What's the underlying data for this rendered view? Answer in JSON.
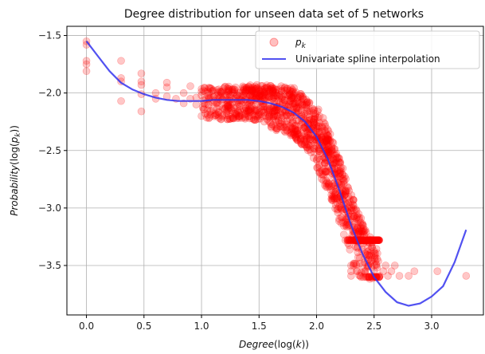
{
  "chart_data": {
    "type": "scatter",
    "title": "Degree distribution for unseen data set of 5 networks",
    "xlabel": {
      "main": "Degree",
      "paren": "(log(",
      "var": "k",
      "close": "))"
    },
    "ylabel": {
      "main": "Probability",
      "paren": "(log(",
      "var": "p",
      "sub": "k",
      "close": "))"
    },
    "xlim": [
      -0.17,
      3.45
    ],
    "ylim": [
      -3.93,
      -1.42
    ],
    "xticks": [
      0.0,
      0.5,
      1.0,
      1.5,
      2.0,
      2.5,
      3.0
    ],
    "xtick_labels": [
      "0.0",
      "0.5",
      "1.0",
      "1.5",
      "2.0",
      "2.5",
      "3.0"
    ],
    "yticks": [
      -1.5,
      -2.0,
      -2.5,
      -3.0,
      -3.5
    ],
    "ytick_labels": [
      "−1.5",
      "−2.0",
      "−2.5",
      "−3.0",
      "−3.5"
    ],
    "grid": true,
    "legend": {
      "placement": "top-right",
      "entries": [
        {
          "label": "p",
          "sub": "k",
          "marker": "circle",
          "color": "#ff0000"
        },
        {
          "label": "Univariate spline interpolation",
          "marker": "line",
          "color": "#3333ee"
        }
      ]
    },
    "series": [
      {
        "name": "p_k",
        "kind": "scatter",
        "color": "#ff0000",
        "alpha": 0.22,
        "points": [
          [
            0.0,
            -1.55
          ],
          [
            0.0,
            -1.58
          ],
          [
            0.0,
            -1.72
          ],
          [
            0.0,
            -1.75
          ],
          [
            0.0,
            -1.81
          ],
          [
            0.301,
            -1.72
          ],
          [
            0.301,
            -1.87
          ],
          [
            0.301,
            -1.9
          ],
          [
            0.301,
            -2.07
          ],
          [
            0.477,
            -1.83
          ],
          [
            0.477,
            -1.9
          ],
          [
            0.477,
            -1.93
          ],
          [
            0.477,
            -2.01
          ],
          [
            0.477,
            -2.16
          ],
          [
            0.602,
            -2.0
          ],
          [
            0.602,
            -2.05
          ],
          [
            0.699,
            -1.91
          ],
          [
            0.699,
            -1.95
          ],
          [
            0.699,
            -2.03
          ],
          [
            0.778,
            -2.05
          ],
          [
            0.845,
            -2.0
          ],
          [
            0.845,
            -2.09
          ],
          [
            0.903,
            -1.94
          ],
          [
            0.903,
            -2.05
          ],
          [
            0.954,
            -2.04
          ],
          [
            0.954,
            -2.1
          ],
          [
            1.0,
            -2.02
          ],
          [
            1.0,
            -2.2
          ],
          [
            2.3,
            -3.5
          ],
          [
            2.3,
            -3.55
          ],
          [
            2.3,
            -3.59
          ],
          [
            2.32,
            -3.5
          ],
          [
            2.35,
            -3.55
          ],
          [
            2.38,
            -3.59
          ],
          [
            2.4,
            -3.5
          ],
          [
            2.42,
            -3.55
          ],
          [
            2.45,
            -3.5
          ],
          [
            2.48,
            -3.59
          ],
          [
            2.5,
            -3.55
          ],
          [
            2.52,
            -3.5
          ],
          [
            2.55,
            -3.59
          ],
          [
            2.58,
            -3.55
          ],
          [
            2.6,
            -3.5
          ],
          [
            2.62,
            -3.59
          ],
          [
            2.65,
            -3.55
          ],
          [
            2.68,
            -3.5
          ],
          [
            2.72,
            -3.59
          ],
          [
            2.8,
            -3.59
          ],
          [
            2.85,
            -3.55
          ],
          [
            3.05,
            -3.55
          ],
          [
            3.3,
            -3.59
          ]
        ]
      },
      {
        "name": "Univariate spline interpolation",
        "kind": "line",
        "color": "#3333ee",
        "points": [
          [
            0.0,
            -1.55
          ],
          [
            0.1,
            -1.68
          ],
          [
            0.2,
            -1.81
          ],
          [
            0.3,
            -1.91
          ],
          [
            0.4,
            -1.97
          ],
          [
            0.5,
            -2.01
          ],
          [
            0.6,
            -2.04
          ],
          [
            0.7,
            -2.06
          ],
          [
            0.8,
            -2.07
          ],
          [
            0.9,
            -2.07
          ],
          [
            1.0,
            -2.07
          ],
          [
            1.1,
            -2.06
          ],
          [
            1.2,
            -2.06
          ],
          [
            1.3,
            -2.06
          ],
          [
            1.4,
            -2.06
          ],
          [
            1.5,
            -2.07
          ],
          [
            1.6,
            -2.09
          ],
          [
            1.7,
            -2.12
          ],
          [
            1.8,
            -2.17
          ],
          [
            1.9,
            -2.25
          ],
          [
            2.0,
            -2.38
          ],
          [
            2.1,
            -2.58
          ],
          [
            2.2,
            -2.85
          ],
          [
            2.3,
            -3.15
          ],
          [
            2.4,
            -3.4
          ],
          [
            2.5,
            -3.6
          ],
          [
            2.6,
            -3.73
          ],
          [
            2.7,
            -3.82
          ],
          [
            2.8,
            -3.85
          ],
          [
            2.9,
            -3.83
          ],
          [
            3.0,
            -3.77
          ],
          [
            3.1,
            -3.68
          ],
          [
            3.2,
            -3.47
          ],
          [
            3.3,
            -3.19
          ]
        ]
      }
    ]
  }
}
